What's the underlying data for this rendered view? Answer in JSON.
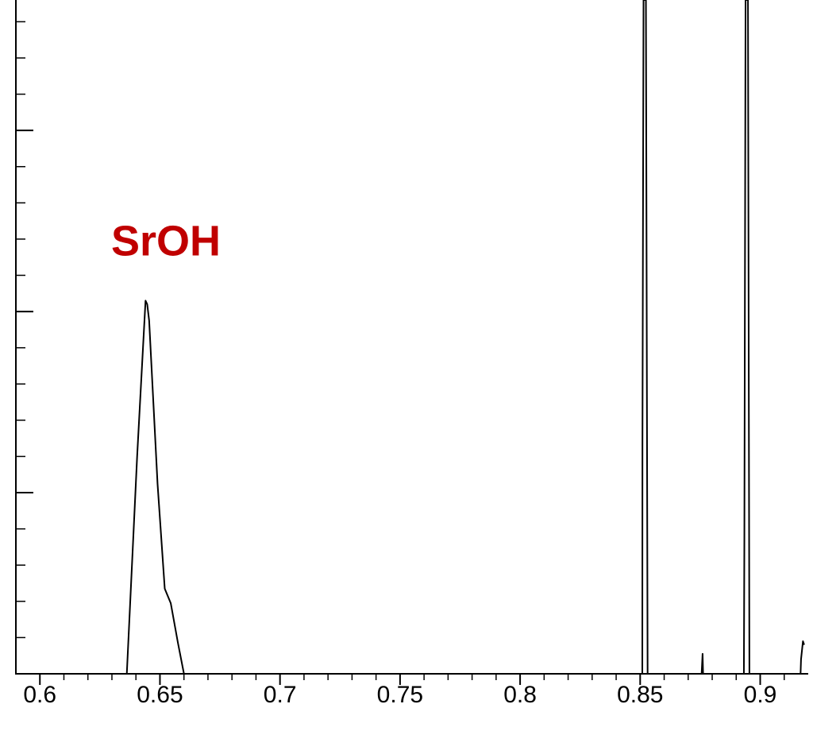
{
  "chart_data": {
    "type": "line",
    "annotation": "SrOH",
    "annotation_color": "#c00000",
    "color": "#000000",
    "x": [
      0.59,
      0.6362,
      0.6405,
      0.644,
      0.6447,
      0.6455,
      0.649,
      0.652,
      0.6545,
      0.6575,
      0.66,
      0.8509,
      0.85095,
      0.8514,
      0.8524,
      0.8531,
      0.8932,
      0.8934,
      0.8939,
      0.8949,
      0.8955,
      0.8756,
      0.876,
      0.8762,
      0.9168,
      0.917,
      0.9178,
      0.9183
    ],
    "values": [
      0,
      0,
      1.2,
      2.06,
      2.04,
      1.95,
      1.05,
      0.47,
      0.39,
      0.17,
      0,
      0,
      1.26,
      3.72,
      3.72,
      0,
      0,
      0.75,
      3.72,
      3.72,
      0,
      0,
      0.11,
      0,
      0,
      0.08,
      0.18,
      0.16
    ],
    "xlim": [
      0.59,
      0.92
    ],
    "ylim": [
      0,
      3.72
    ],
    "xticks": [
      0.6,
      0.65,
      0.7,
      0.75,
      0.8,
      0.85,
      0.9
    ],
    "xminorticks": [
      0.61,
      0.62,
      0.63,
      0.64,
      0.66,
      0.67,
      0.68,
      0.69,
      0.71,
      0.72,
      0.73,
      0.74,
      0.76,
      0.77,
      0.78,
      0.79,
      0.81,
      0.82,
      0.83,
      0.84,
      0.86,
      0.87,
      0.88,
      0.89,
      0.91
    ],
    "yticks": [
      1,
      2,
      3
    ],
    "yminorticks": [
      0.2,
      0.4,
      0.6,
      0.8,
      1.2,
      1.4,
      1.6,
      1.8,
      2.2,
      2.4,
      2.6,
      2.8,
      3.2,
      3.4,
      3.6
    ]
  }
}
